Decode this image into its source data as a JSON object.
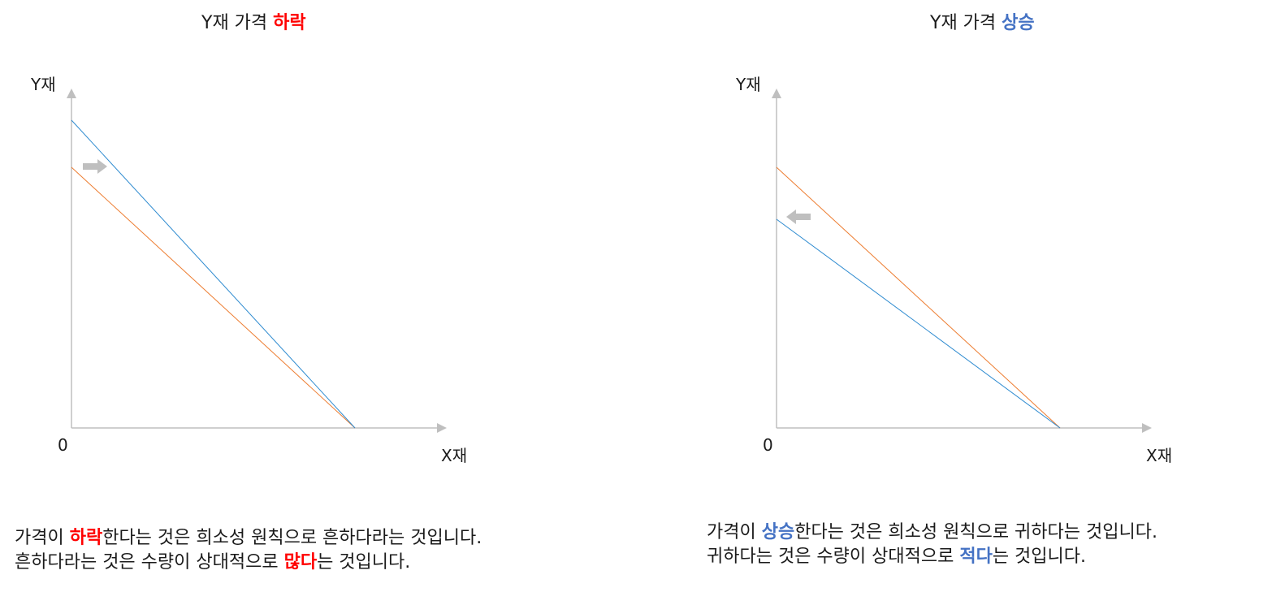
{
  "panels": {
    "left": {
      "title_prefix": "Y재 가격 ",
      "title_highlight": "하락",
      "y_axis_label": "Y재",
      "x_axis_label": "X재",
      "origin_label": "0",
      "caption": {
        "line1_prefix": "가격이 ",
        "line1_highlight": "하락",
        "line1_suffix": "한다는 것은 희소성 원칙으로 흔하다라는 것입니다.",
        "line2_prefix": "흔하다라는 것은 수량이 상대적으로 ",
        "line2_highlight": "많다",
        "line2_suffix": "는 것입니다."
      },
      "highlight_color": "#ff0000",
      "arrow_direction": "right"
    },
    "right": {
      "title_prefix": "Y재 가격 ",
      "title_highlight": "상승",
      "y_axis_label": "Y재",
      "x_axis_label": "X재",
      "origin_label": "0",
      "caption": {
        "line1_prefix": "가격이 ",
        "line1_highlight": "상승",
        "line1_suffix": "한다는 것은 희소성 원칙으로 귀하다는 것입니다.",
        "line2_prefix": "귀하다는 것은 수량이 상대적으로 ",
        "line2_highlight": "적다",
        "line2_suffix": "는 것입니다."
      },
      "highlight_color": "#4472c4",
      "arrow_direction": "left"
    }
  },
  "colors": {
    "axis": "#bfbfbf",
    "original_budget_line": "#ed7d31",
    "new_budget_line": "#2e8bd0",
    "shift_arrow": "#bfbfbf"
  }
}
